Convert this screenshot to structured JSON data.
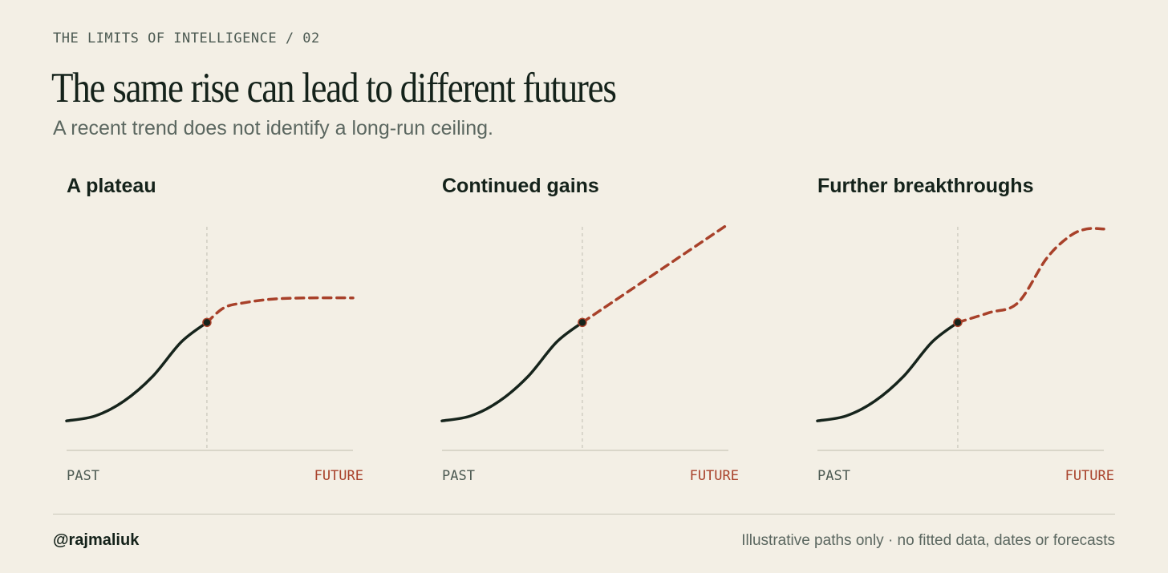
{
  "header": {
    "kicker": "THE LIMITS OF INTELLIGENCE / 02",
    "title": "The same rise can lead to different futures",
    "subtitle": "A recent trend does not identify a long-run ceiling."
  },
  "footer": {
    "handle": "@rajmaliuk",
    "note": "Illustrative paths only · no fitted data, dates or forecasts"
  },
  "colors": {
    "past_line": "#16241c",
    "future_line": "#a8412a",
    "axis": "#c9c6b9",
    "background": "#f3efe5"
  },
  "chart_data": [
    {
      "type": "line",
      "title": "A plateau",
      "x_start_label": "PAST",
      "x_end_label": "FUTURE",
      "xlim": [
        0,
        1
      ],
      "ylim": [
        0,
        1
      ],
      "split_x": 0.49,
      "series": [
        {
          "style": "solid",
          "x": [
            0,
            0.1,
            0.2,
            0.3,
            0.4,
            0.49
          ],
          "y": [
            0.12,
            0.14,
            0.2,
            0.3,
            0.44,
            0.52
          ]
        },
        {
          "style": "dashed",
          "x": [
            0.49,
            0.55,
            0.62,
            0.72,
            0.85,
            1.0
          ],
          "y": [
            0.52,
            0.58,
            0.6,
            0.615,
            0.62,
            0.62
          ]
        }
      ]
    },
    {
      "type": "line",
      "title": "Continued gains",
      "x_start_label": "PAST",
      "x_end_label": "FUTURE",
      "xlim": [
        0,
        1
      ],
      "ylim": [
        0,
        1
      ],
      "split_x": 0.49,
      "series": [
        {
          "style": "solid",
          "x": [
            0,
            0.1,
            0.2,
            0.3,
            0.4,
            0.49
          ],
          "y": [
            0.12,
            0.14,
            0.2,
            0.3,
            0.44,
            0.52
          ]
        },
        {
          "style": "dashed",
          "x": [
            0.49,
            1.0
          ],
          "y": [
            0.52,
            0.92
          ]
        }
      ]
    },
    {
      "type": "line",
      "title": "Further breakthroughs",
      "x_start_label": "PAST",
      "x_end_label": "FUTURE",
      "xlim": [
        0,
        1
      ],
      "ylim": [
        0,
        1
      ],
      "split_x": 0.49,
      "series": [
        {
          "style": "solid",
          "x": [
            0,
            0.1,
            0.2,
            0.3,
            0.4,
            0.49
          ],
          "y": [
            0.12,
            0.14,
            0.2,
            0.3,
            0.44,
            0.52
          ]
        },
        {
          "style": "dashed",
          "x": [
            0.49,
            0.6,
            0.7,
            0.8,
            0.88,
            0.94,
            1.0
          ],
          "y": [
            0.52,
            0.56,
            0.6,
            0.78,
            0.87,
            0.9,
            0.9
          ]
        }
      ]
    }
  ]
}
